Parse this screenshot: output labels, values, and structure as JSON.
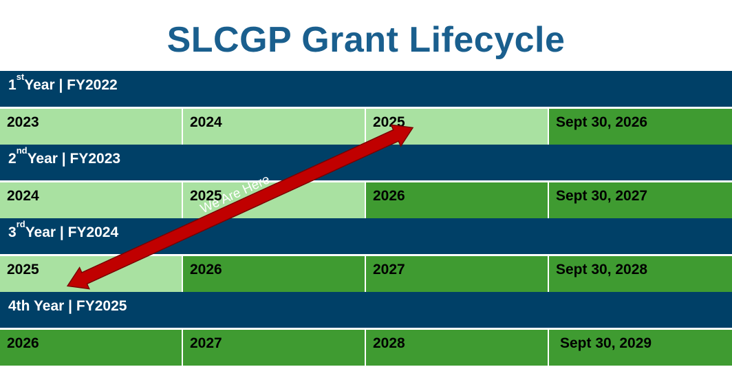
{
  "title": "SLCGP Grant Lifecycle",
  "rows": [
    {
      "year_num": "1",
      "year_sup": "st",
      "year_rest": " Year | FY2022",
      "cells": [
        {
          "label": "2023",
          "state": "light"
        },
        {
          "label": "2024",
          "state": "light"
        },
        {
          "label": "2025",
          "state": "light"
        },
        {
          "label": "Sept 30, 2026",
          "state": "dark"
        }
      ]
    },
    {
      "year_num": "2",
      "year_sup": "nd",
      "year_rest": " Year | FY2023",
      "cells": [
        {
          "label": "2024",
          "state": "light"
        },
        {
          "label": "2025",
          "state": "light"
        },
        {
          "label": "2026",
          "state": "dark"
        },
        {
          "label": "Sept 30, 2027",
          "state": "dark"
        }
      ]
    },
    {
      "year_num": "3",
      "year_sup": "rd",
      "year_rest": " Year | FY2024",
      "cells": [
        {
          "label": "2025",
          "state": "light"
        },
        {
          "label": "2026",
          "state": "dark"
        },
        {
          "label": "2027",
          "state": "dark"
        },
        {
          "label": "Sept 30, 2028",
          "state": "dark"
        }
      ]
    },
    {
      "year_num": "4th Year | FY2025",
      "year_sup": "",
      "year_rest": "",
      "cells": [
        {
          "label": "2026",
          "state": "dark"
        },
        {
          "label": "2027",
          "state": "dark"
        },
        {
          "label": "2028",
          "state": "dark"
        },
        {
          "label": " Sept 30, 2029",
          "state": "dark"
        }
      ]
    }
  ],
  "arrow_label": "We Are Here",
  "colors": {
    "header": "#004067",
    "light_green": "#a9e1a1",
    "dark_green": "#3f9b31",
    "arrow": "#c00000",
    "title": "#1a5f8e"
  }
}
